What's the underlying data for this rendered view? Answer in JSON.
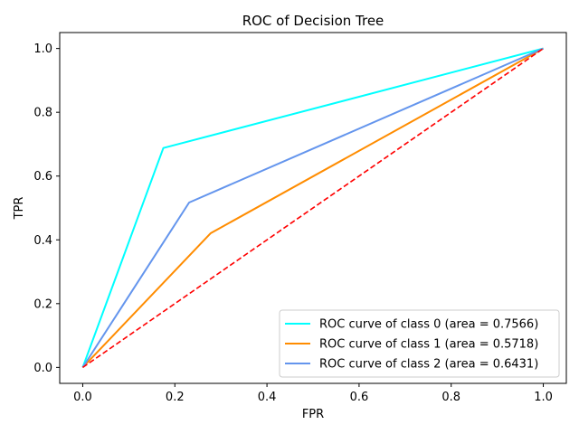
{
  "chart_data": {
    "type": "line",
    "title": "ROC of Decision Tree",
    "xlabel": "FPR",
    "ylabel": "TPR",
    "xlim": [
      -0.05,
      1.05
    ],
    "ylim": [
      -0.05,
      1.05
    ],
    "x_ticks": [
      0.0,
      0.2,
      0.4,
      0.6,
      0.8,
      1.0
    ],
    "y_ticks": [
      0.0,
      0.2,
      0.4,
      0.6,
      0.8,
      1.0
    ],
    "x_tick_labels": [
      "0.0",
      "0.2",
      "0.4",
      "0.6",
      "0.8",
      "1.0"
    ],
    "y_tick_labels": [
      "0.0",
      "0.2",
      "0.4",
      "0.6",
      "0.8",
      "1.0"
    ],
    "grid": false,
    "legend_position": "lower-right",
    "series": [
      {
        "name": "ROC curve of class 0 (area = 0.7566)",
        "color": "#00ffff",
        "style": "solid",
        "x": [
          0.0,
          0.175,
          1.0
        ],
        "y": [
          0.0,
          0.688,
          1.0
        ]
      },
      {
        "name": "ROC curve of class 1 (area = 0.5718)",
        "color": "#ff8c00",
        "style": "solid",
        "x": [
          0.0,
          0.278,
          1.0
        ],
        "y": [
          0.0,
          0.421,
          1.0
        ]
      },
      {
        "name": "ROC curve of class 2 (area = 0.6431)",
        "color": "#6495ed",
        "style": "solid",
        "x": [
          0.0,
          0.231,
          1.0
        ],
        "y": [
          0.0,
          0.517,
          1.0
        ]
      }
    ],
    "reference_line": {
      "color": "#ff0000",
      "style": "dashed",
      "x": [
        0.0,
        1.0
      ],
      "y": [
        0.0,
        1.0
      ]
    }
  }
}
